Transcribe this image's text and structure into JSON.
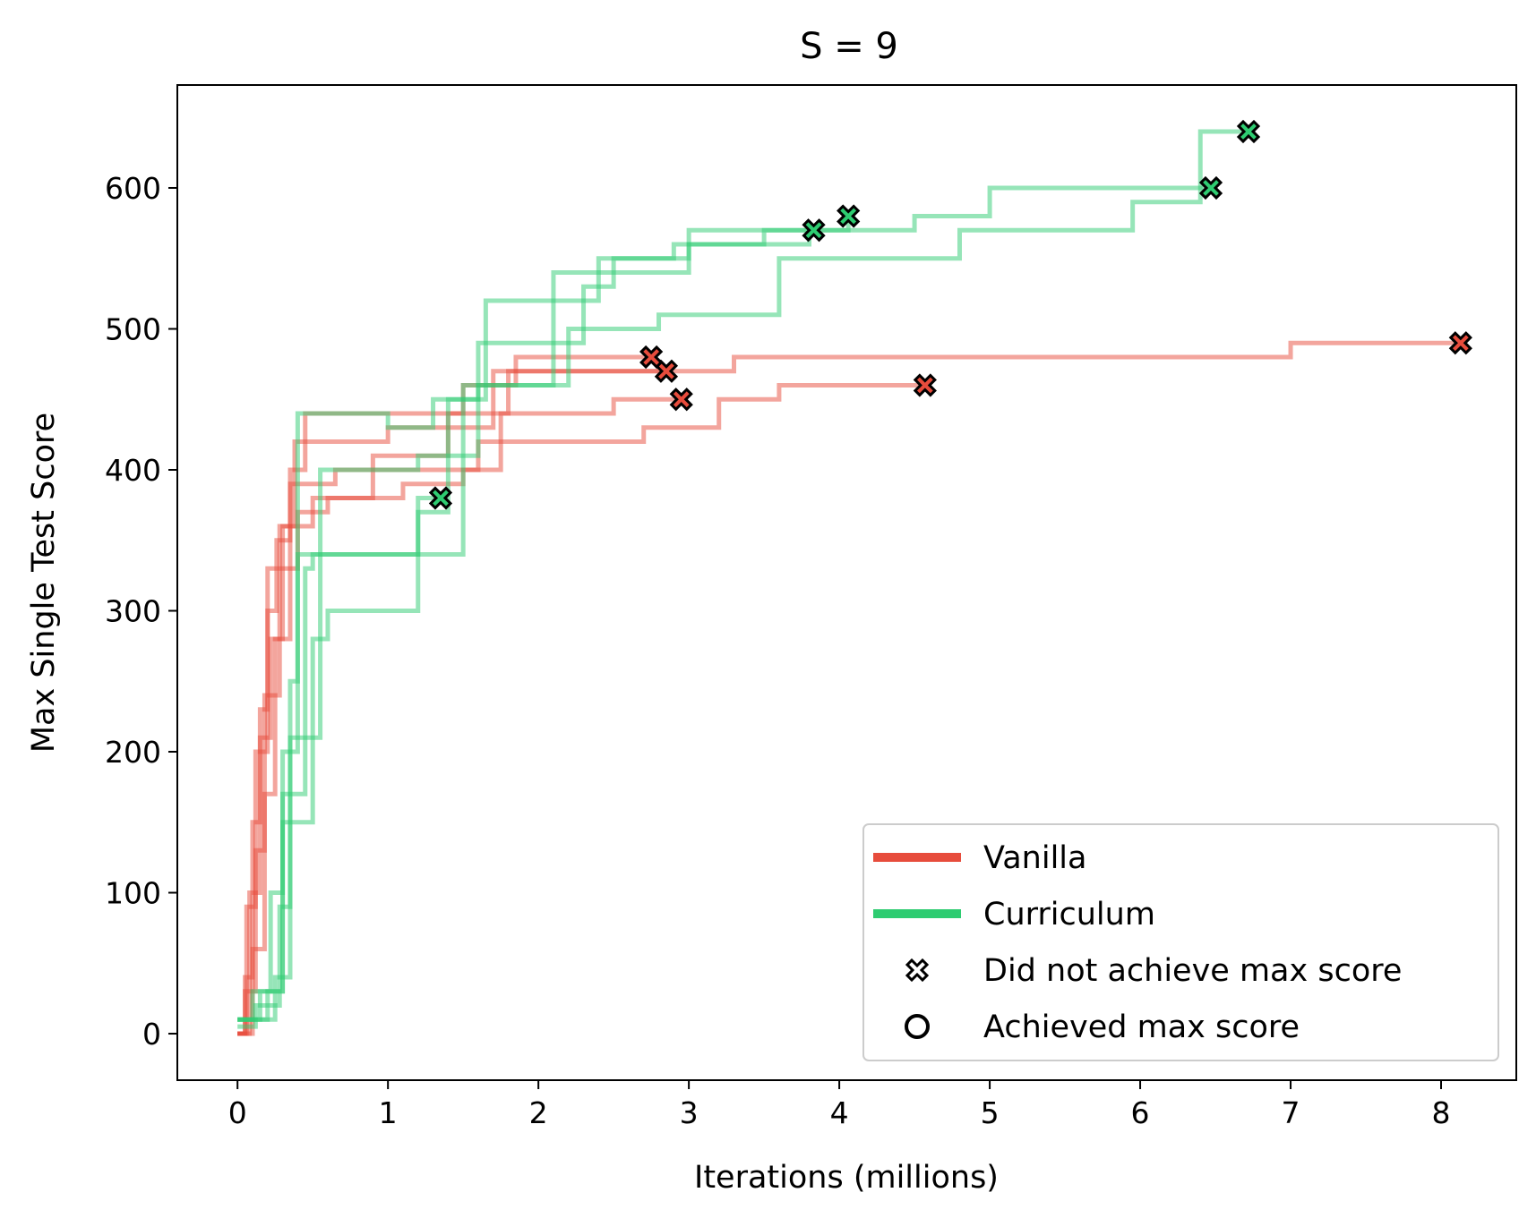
{
  "chart_data": {
    "type": "line",
    "title": "S = 9",
    "xlabel": "Iterations (millions)",
    "ylabel": "Max Single Test Score",
    "xlim": [
      -0.4,
      8.5
    ],
    "ylim": [
      -33,
      673
    ],
    "xticks": [
      0,
      1,
      2,
      3,
      4,
      5,
      6,
      7,
      8
    ],
    "yticks": [
      0,
      100,
      200,
      300,
      400,
      500,
      600
    ],
    "grid": false,
    "legend_position": "bottom-right",
    "colors": {
      "Vanilla": "#e74c3c",
      "Curriculum": "#2ecc71"
    },
    "legend": [
      {
        "label": "Vanilla",
        "kind": "line",
        "color": "#e74c3c"
      },
      {
        "label": "Curriculum",
        "kind": "line",
        "color": "#2ecc71"
      },
      {
        "label": "Did not achieve max score",
        "kind": "x-marker"
      },
      {
        "label": "Achieved max score",
        "kind": "o-marker"
      }
    ],
    "series": [
      {
        "group": "Vanilla",
        "end_marker": "x",
        "points": [
          [
            0,
            0
          ],
          [
            0.05,
            40
          ],
          [
            0.1,
            150
          ],
          [
            0.15,
            230
          ],
          [
            0.2,
            330
          ],
          [
            0.3,
            360
          ],
          [
            0.38,
            420
          ],
          [
            1.0,
            430
          ],
          [
            1.7,
            470
          ],
          [
            2.85,
            470
          ]
        ]
      },
      {
        "group": "Vanilla",
        "end_marker": "x",
        "points": [
          [
            0,
            0
          ],
          [
            0.06,
            90
          ],
          [
            0.12,
            200
          ],
          [
            0.2,
            300
          ],
          [
            0.26,
            350
          ],
          [
            0.35,
            400
          ],
          [
            0.45,
            440
          ],
          [
            1.5,
            460
          ],
          [
            1.85,
            480
          ],
          [
            2.75,
            480
          ]
        ]
      },
      {
        "group": "Vanilla",
        "end_marker": "x",
        "points": [
          [
            0,
            0
          ],
          [
            0.08,
            100
          ],
          [
            0.15,
            210
          ],
          [
            0.22,
            280
          ],
          [
            0.3,
            330
          ],
          [
            0.4,
            360
          ],
          [
            0.5,
            380
          ],
          [
            0.9,
            410
          ],
          [
            1.4,
            440
          ],
          [
            1.8,
            470
          ],
          [
            3.3,
            480
          ],
          [
            7.0,
            490
          ],
          [
            8.13,
            490
          ]
        ]
      },
      {
        "group": "Vanilla",
        "end_marker": "x",
        "points": [
          [
            0,
            0
          ],
          [
            0.1,
            60
          ],
          [
            0.18,
            170
          ],
          [
            0.25,
            280
          ],
          [
            0.35,
            390
          ],
          [
            0.65,
            400
          ],
          [
            1.6,
            420
          ],
          [
            2.7,
            430
          ],
          [
            3.2,
            450
          ],
          [
            3.6,
            460
          ],
          [
            4.57,
            460
          ]
        ]
      },
      {
        "group": "Vanilla",
        "end_marker": "x",
        "points": [
          [
            0,
            0
          ],
          [
            0.05,
            30
          ],
          [
            0.12,
            130
          ],
          [
            0.18,
            240
          ],
          [
            0.28,
            360
          ],
          [
            0.4,
            370
          ],
          [
            0.6,
            380
          ],
          [
            1.1,
            390
          ],
          [
            1.5,
            400
          ],
          [
            1.75,
            440
          ],
          [
            2.5,
            450
          ],
          [
            2.95,
            450
          ]
        ]
      },
      {
        "group": "Curriculum",
        "end_marker": "x",
        "points": [
          [
            0,
            10
          ],
          [
            0.1,
            30
          ],
          [
            0.22,
            100
          ],
          [
            0.3,
            200
          ],
          [
            0.4,
            440
          ],
          [
            1.0,
            430
          ],
          [
            1.3,
            450
          ],
          [
            1.6,
            490
          ],
          [
            2.3,
            530
          ],
          [
            2.5,
            540
          ],
          [
            3.0,
            570
          ],
          [
            3.83,
            570
          ]
        ]
      },
      {
        "group": "Curriculum",
        "end_marker": "x",
        "points": [
          [
            0,
            5
          ],
          [
            0.12,
            20
          ],
          [
            0.28,
            90
          ],
          [
            0.35,
            250
          ],
          [
            0.4,
            340
          ],
          [
            1.0,
            340
          ],
          [
            1.2,
            370
          ],
          [
            1.4,
            450
          ],
          [
            1.65,
            520
          ],
          [
            2.0,
            520
          ],
          [
            2.4,
            550
          ],
          [
            2.9,
            560
          ],
          [
            3.5,
            570
          ],
          [
            4.06,
            580
          ]
        ]
      },
      {
        "group": "Curriculum",
        "end_marker": "x",
        "points": [
          [
            0,
            10
          ],
          [
            0.15,
            30
          ],
          [
            0.3,
            150
          ],
          [
            0.5,
            280
          ],
          [
            0.6,
            300
          ],
          [
            1.2,
            380
          ],
          [
            1.35,
            380
          ]
        ]
      },
      {
        "group": "Curriculum",
        "end_marker": "x",
        "points": [
          [
            0,
            10
          ],
          [
            0.2,
            30
          ],
          [
            0.3,
            170
          ],
          [
            0.45,
            330
          ],
          [
            0.5,
            340
          ],
          [
            1.5,
            460
          ],
          [
            2.1,
            540
          ],
          [
            2.5,
            550
          ],
          [
            3.0,
            560
          ],
          [
            3.8,
            570
          ],
          [
            4.5,
            580
          ],
          [
            5.0,
            600
          ],
          [
            6.47,
            600
          ]
        ]
      },
      {
        "group": "Curriculum",
        "end_marker": "x",
        "points": [
          [
            0,
            10
          ],
          [
            0.25,
            40
          ],
          [
            0.35,
            210
          ],
          [
            0.55,
            400
          ],
          [
            1.2,
            410
          ],
          [
            1.6,
            460
          ],
          [
            2.2,
            500
          ],
          [
            2.8,
            510
          ],
          [
            3.6,
            550
          ],
          [
            4.8,
            570
          ],
          [
            5.95,
            590
          ],
          [
            6.4,
            640
          ],
          [
            6.72,
            640
          ]
        ]
      }
    ]
  }
}
